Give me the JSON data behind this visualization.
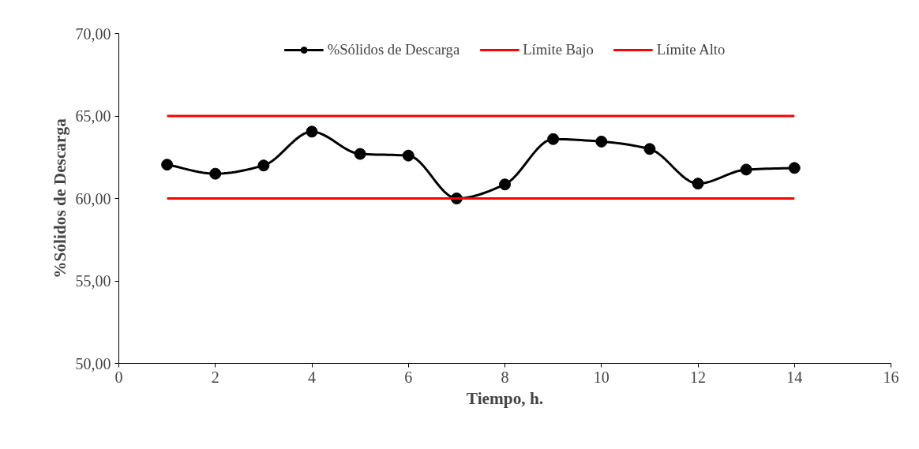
{
  "chart_data": {
    "type": "line",
    "xlabel": "Tiempo, h.",
    "ylabel": "%Sólidos de Descarga",
    "x": [
      1,
      2,
      3,
      4,
      5,
      6,
      7,
      8,
      9,
      10,
      11,
      12,
      13,
      14
    ],
    "series": [
      {
        "name": "%Sólidos de Descarga",
        "color": "#000000",
        "marker": "circle",
        "values": [
          62.05,
          61.5,
          62.0,
          64.05,
          62.7,
          62.6,
          60.0,
          60.85,
          63.6,
          63.45,
          63.0,
          60.9,
          61.75,
          61.85
        ]
      },
      {
        "name": "Límite Bajo",
        "color": "#ff0000",
        "marker": "none",
        "values": [
          60,
          60,
          60,
          60,
          60,
          60,
          60,
          60,
          60,
          60,
          60,
          60,
          60,
          60
        ]
      },
      {
        "name": "Límite Alto",
        "color": "#ff0000",
        "marker": "none",
        "values": [
          65,
          65,
          65,
          65,
          65,
          65,
          65,
          65,
          65,
          65,
          65,
          65,
          65,
          65
        ]
      }
    ],
    "xlim": [
      0,
      16
    ],
    "xticks": [
      0,
      2,
      4,
      6,
      8,
      10,
      12,
      14,
      16
    ],
    "ylim": [
      50,
      70
    ],
    "yticks": [
      {
        "value": 50,
        "label": "50,00"
      },
      {
        "value": 55,
        "label": "55,00"
      },
      {
        "value": 60,
        "label": "60,00"
      },
      {
        "value": 65,
        "label": "65,00"
      },
      {
        "value": 70,
        "label": "70,00"
      }
    ],
    "grid": false,
    "legend": "top",
    "line_style": "solid"
  }
}
